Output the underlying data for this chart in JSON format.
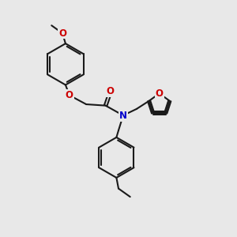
{
  "bg_color": "#e8e8e8",
  "bond_color": "#1a1a1a",
  "bond_width": 1.5,
  "C_color": "#1a1a1a",
  "O_color": "#cc0000",
  "N_color": "#0000cc",
  "font_size": 8.5,
  "fig_size": [
    3.0,
    3.0
  ],
  "dpi": 100,
  "xlim": [
    0.0,
    8.5
  ],
  "ylim": [
    0.5,
    9.5
  ]
}
